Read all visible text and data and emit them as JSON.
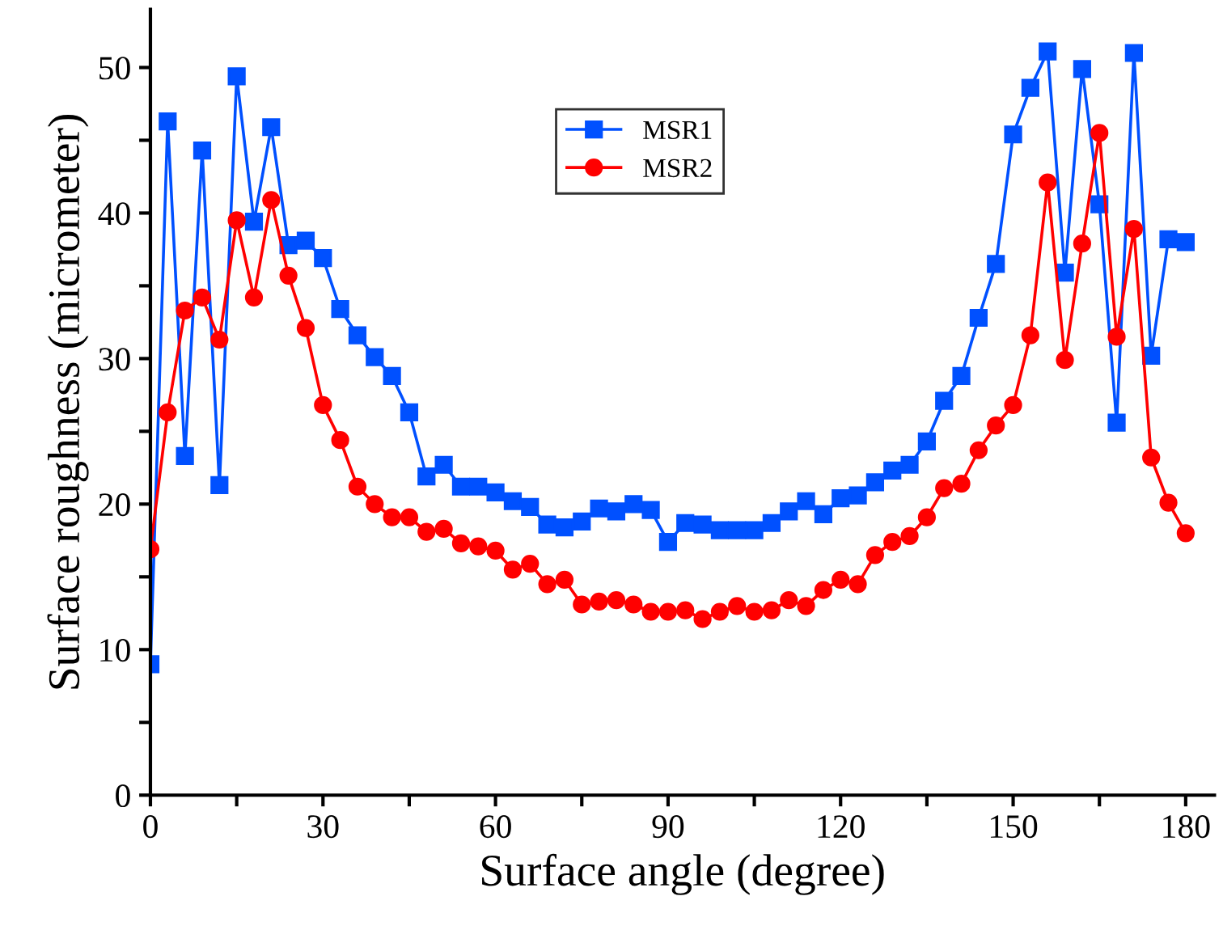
{
  "chart_data": {
    "type": "line",
    "xlabel": "Surface angle (degree)",
    "ylabel": "Surface roughness (micrometer)",
    "x": [
      0,
      3,
      6,
      9,
      12,
      15,
      18,
      21,
      24,
      27,
      30,
      33,
      36,
      39,
      42,
      45,
      48,
      51,
      54,
      57,
      60,
      63,
      66,
      69,
      72,
      75,
      78,
      81,
      84,
      87,
      90,
      93,
      96,
      99,
      102,
      105,
      108,
      111,
      114,
      117,
      120,
      123,
      126,
      129,
      132,
      135,
      138,
      141,
      144,
      147,
      150,
      153,
      156,
      159,
      162,
      165,
      168,
      171,
      174,
      177,
      180
    ],
    "series": [
      {
        "name": "MSR1",
        "color": "#0050ff",
        "marker": "square",
        "values": [
          9.0,
          46.3,
          23.3,
          44.3,
          21.3,
          49.4,
          39.4,
          45.9,
          37.8,
          38.1,
          36.9,
          33.4,
          31.6,
          30.1,
          28.8,
          26.3,
          21.9,
          22.7,
          21.2,
          21.2,
          20.8,
          20.2,
          19.8,
          18.6,
          18.4,
          18.8,
          19.7,
          19.5,
          20.0,
          19.6,
          17.4,
          18.7,
          18.6,
          18.2,
          18.2,
          18.2,
          18.7,
          19.5,
          20.2,
          19.3,
          20.4,
          20.6,
          21.5,
          22.3,
          22.7,
          24.3,
          27.1,
          28.8,
          32.8,
          36.5,
          45.4,
          48.6,
          51.1,
          35.9,
          49.9,
          40.6,
          25.6,
          51.0,
          30.2,
          38.2,
          38.0
        ]
      },
      {
        "name": "MSR2",
        "color": "#ff0000",
        "marker": "circle",
        "values": [
          16.9,
          26.3,
          33.3,
          34.2,
          31.3,
          39.5,
          34.2,
          40.9,
          35.7,
          32.1,
          26.8,
          24.4,
          21.2,
          20.0,
          19.1,
          19.1,
          18.1,
          18.3,
          17.3,
          17.1,
          16.8,
          15.5,
          15.9,
          14.5,
          14.8,
          13.1,
          13.3,
          13.4,
          13.1,
          12.6,
          12.6,
          12.7,
          12.1,
          12.6,
          13.0,
          12.6,
          12.7,
          13.4,
          13.0,
          14.1,
          14.8,
          14.5,
          16.5,
          17.4,
          17.8,
          19.1,
          21.1,
          21.4,
          23.7,
          25.4,
          26.8,
          31.6,
          42.1,
          29.9,
          37.9,
          45.5,
          31.5,
          38.9,
          23.2,
          20.1,
          18.0
        ]
      }
    ],
    "xlim": [
      0,
      185
    ],
    "ylim": [
      0,
      54
    ],
    "xticks": [
      0,
      {
        "value": 15,
        "label": null
      },
      30,
      {
        "value": 45,
        "label": null
      },
      60,
      {
        "value": 75,
        "label": null
      },
      90,
      {
        "value": 105,
        "label": null
      },
      120,
      {
        "value": 135,
        "label": null
      },
      150,
      {
        "value": 165,
        "label": null
      },
      180
    ],
    "yticks": [
      0,
      {
        "value": 5,
        "label": null
      },
      10,
      {
        "value": 15,
        "label": null
      },
      20,
      {
        "value": 25,
        "label": null
      },
      30,
      {
        "value": 35,
        "label": null
      },
      40,
      {
        "value": 45,
        "label": null
      },
      50
    ],
    "grid": false,
    "legend": "top"
  }
}
